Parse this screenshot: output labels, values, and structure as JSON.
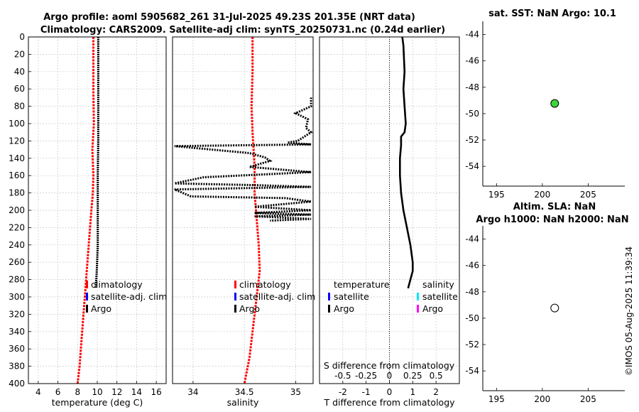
{
  "header": {
    "line1": "Argo profile: aoml 5905682_261 31-Jul-2025 49.23S 201.35E (NRT data)",
    "line2": "Climatology: CARS2009. Satellite-adj clim: synTS_20250731.nc (0.24d earlier)"
  },
  "colors": {
    "climatology": "#ff0000",
    "satellite_adj": "#0000ff",
    "argo": "#000000",
    "sat_salinity": "#00e5ff",
    "argo_salinity_marker": "#ff00ff",
    "sst_marker": "#3ad63a"
  },
  "credit": "©IMOS 05-Aug-2025 11:39:34",
  "chart_data": [
    {
      "type": "line",
      "xlabel": "temperature (deg C)",
      "ylabel": "",
      "xlim": [
        3,
        17
      ],
      "ylim": [
        400,
        0
      ],
      "xticks": [
        "4",
        "6",
        "8",
        "10",
        "12",
        "14",
        "16"
      ],
      "yticks": [
        "0",
        "20",
        "40",
        "60",
        "80",
        "100",
        "120",
        "140",
        "160",
        "180",
        "200",
        "220",
        "240",
        "260",
        "280",
        "300",
        "320",
        "340",
        "360",
        "380",
        "400"
      ],
      "grid": true,
      "legend": {
        "position": "bottom-right",
        "entries": [
          "climatology",
          "satellite-adj. clim",
          "Argo"
        ]
      },
      "series": [
        {
          "name": "climatology",
          "x": [
            9.6,
            9.6,
            9.6,
            9.65,
            9.6,
            9.5,
            9.6,
            9.55,
            9.4,
            9.2,
            9.0,
            8.8,
            8.6,
            8.4,
            8.2,
            8.0
          ],
          "y": [
            0,
            20,
            60,
            100,
            110,
            130,
            160,
            180,
            200,
            230,
            260,
            290,
            320,
            350,
            380,
            400
          ]
        },
        {
          "name": "Argo",
          "x": [
            10.1,
            10.1,
            10.1,
            10.1,
            10.05,
            10.05,
            10.05,
            9.95,
            9.9,
            9.8
          ],
          "y": [
            0,
            40,
            80,
            120,
            160,
            200,
            240,
            270,
            280,
            290
          ]
        }
      ]
    },
    {
      "type": "line",
      "xlabel": "salinity",
      "xlim": [
        33.8,
        35.17
      ],
      "ylim": [
        400,
        0
      ],
      "xticks": [
        "34",
        "34.5",
        "35"
      ],
      "grid": true,
      "legend": {
        "position": "bottom-right",
        "entries": [
          "climatology",
          "satellite-adj. clim",
          "Argo"
        ]
      },
      "series": [
        {
          "name": "climatology",
          "x": [
            34.58,
            34.58,
            34.57,
            34.58,
            34.6,
            34.6,
            34.62,
            34.64,
            34.65,
            34.6,
            34.55,
            34.5
          ],
          "y": [
            0,
            40,
            80,
            110,
            150,
            180,
            210,
            240,
            270,
            320,
            370,
            400
          ]
        },
        {
          "name": "Argo",
          "x": [
            35.15,
            35.15,
            35.0,
            35.12,
            35.1,
            35.15,
            35.02,
            34.92,
            35.15,
            33.82,
            34.55,
            34.7,
            34.75,
            34.55,
            35.15,
            34.1,
            33.82,
            34.6,
            35.15,
            33.82,
            33.98,
            34.9,
            35.15,
            34.6,
            35.15,
            34.6,
            35.15,
            34.6,
            35.15,
            34.75
          ],
          "y": [
            70,
            80,
            88,
            95,
            105,
            110,
            120,
            122,
            124,
            126,
            134,
            139,
            143,
            150,
            156,
            162,
            169,
            171,
            173,
            176,
            184,
            186,
            190,
            196,
            200,
            203,
            205,
            207,
            210,
            212
          ]
        }
      ]
    },
    {
      "type": "line",
      "xlabel": "T difference from climatology",
      "top_axis_label": "S difference from climatology",
      "xlim": [
        -3,
        3
      ],
      "top_xlim": [
        -0.75,
        0.75
      ],
      "ylim": [
        400,
        0
      ],
      "xticks": [
        "-2",
        "-1",
        "0",
        "1",
        "2"
      ],
      "top_xticks": [
        "-0.5",
        "-0.25",
        "0",
        "0.25",
        "0.5"
      ],
      "grid": true,
      "legend": {
        "position": "bottom",
        "headings": [
          "temperature",
          "salinity"
        ],
        "entries": [
          "satellite",
          "Argo",
          "satellite",
          "Argo"
        ]
      },
      "series": [
        {
          "name": "temperature Argo",
          "x": [
            0.55,
            0.6,
            0.65,
            0.6,
            0.65,
            0.7,
            0.65,
            0.5,
            0.5,
            0.45,
            0.45,
            0.5,
            0.6,
            0.75,
            0.9,
            1.0,
            1.0,
            0.85,
            0.8
          ],
          "y": [
            0,
            10,
            40,
            60,
            80,
            100,
            110,
            115,
            125,
            140,
            160,
            180,
            200,
            220,
            240,
            260,
            270,
            285,
            290
          ]
        }
      ]
    },
    {
      "type": "scatter",
      "title": "sat. SST: NaN Argo: 10.1",
      "xlim": [
        193.5,
        209
      ],
      "ylim": [
        -55.5,
        -43
      ],
      "xticks": [
        "195",
        "200",
        "205"
      ],
      "yticks": [
        "-44",
        "-46",
        "-48",
        "-50",
        "-52",
        "-54"
      ],
      "points": [
        {
          "x": 201.35,
          "y": -49.23
        }
      ]
    },
    {
      "type": "scatter",
      "title": "Altim. SLA: NaN",
      "subtitle": "Argo h1000: NaN h2000: NaN",
      "xlim": [
        193.5,
        209
      ],
      "ylim": [
        -55.5,
        -43
      ],
      "xticks": [
        "195",
        "200",
        "205"
      ],
      "yticks": [
        "-44",
        "-46",
        "-48",
        "-50",
        "-52",
        "-54"
      ],
      "points": [
        {
          "x": 201.35,
          "y": -49.23
        }
      ]
    }
  ]
}
